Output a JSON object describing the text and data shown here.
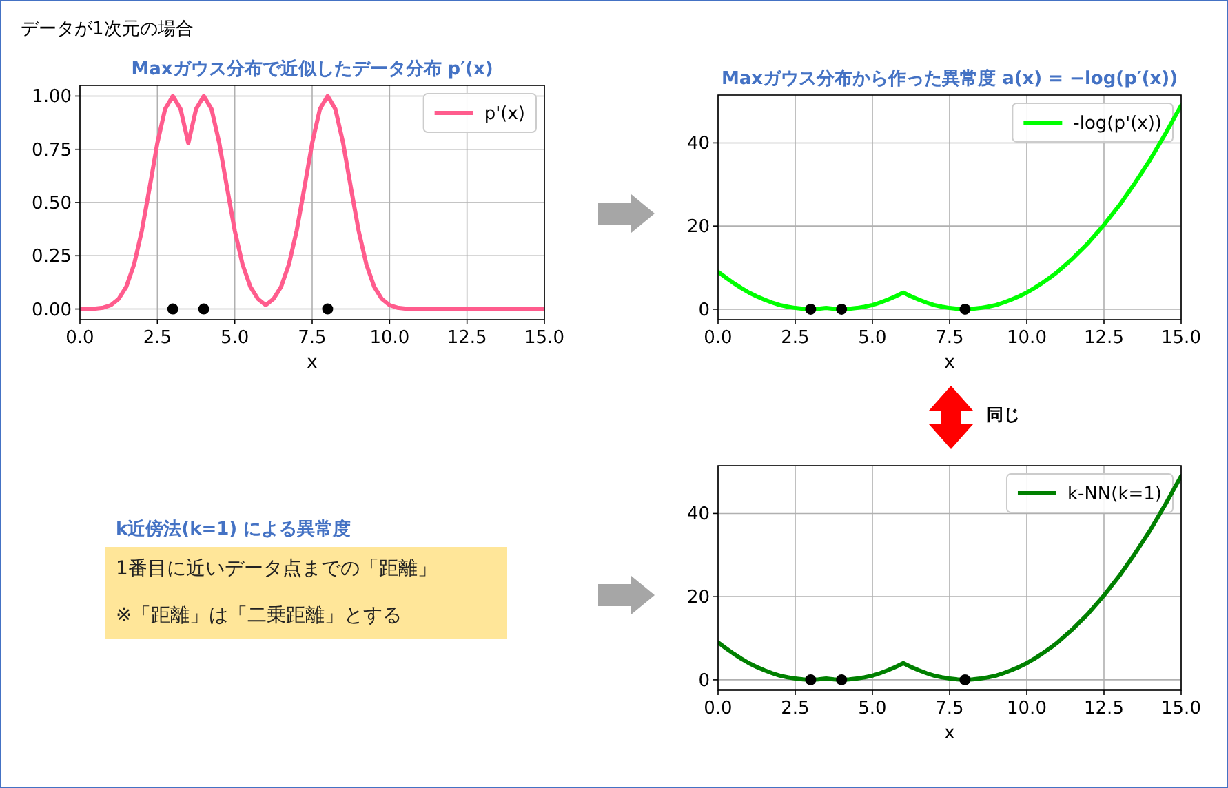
{
  "chart_data": [
    {
      "type": "other",
      "title": "データが1次元の場合"
    },
    {
      "type": "line",
      "title": "Maxガウス分布で近似したデータ分布 p′(x)",
      "xlabel": "x",
      "xlim": [
        0,
        15
      ],
      "xticks": [
        {
          "value": 0,
          "label": "0.0"
        },
        {
          "value": 2.5,
          "label": "2.5"
        },
        {
          "value": 5,
          "label": "5.0"
        },
        {
          "value": 7.5,
          "label": "7.5"
        },
        {
          "value": 10,
          "label": "10.0"
        },
        {
          "value": 12.5,
          "label": "12.5"
        },
        {
          "value": 15,
          "label": "15.0"
        }
      ],
      "ylim": [
        -0.05,
        1.05
      ],
      "yticks": [
        {
          "value": 0,
          "label": "0.00"
        },
        {
          "value": 0.25,
          "label": "0.25"
        },
        {
          "value": 0.5,
          "label": "0.50"
        },
        {
          "value": 0.75,
          "label": "0.75"
        },
        {
          "value": 1,
          "label": "1.00"
        }
      ],
      "grid": true,
      "legend": "top right",
      "line_style": "solid",
      "series": [
        {
          "type": "line",
          "name": "p'(x)",
          "color": "#ff5c8d",
          "x": [
            0,
            0.25,
            0.5,
            0.75,
            1,
            1.25,
            1.5,
            1.75,
            2,
            2.25,
            2.5,
            2.75,
            3,
            3.25,
            3.5,
            3.75,
            4,
            4.25,
            4.5,
            4.75,
            5,
            5.25,
            5.5,
            5.75,
            6,
            6.25,
            6.5,
            6.75,
            7,
            7.25,
            7.5,
            7.75,
            8,
            8.25,
            8.5,
            8.75,
            9,
            9.25,
            9.5,
            9.75,
            10,
            10.25,
            10.5,
            10.75,
            11,
            15
          ],
          "values": [
            0.0,
            0.001,
            0.002,
            0.006,
            0.018,
            0.047,
            0.105,
            0.21,
            0.368,
            0.57,
            0.779,
            0.939,
            1,
            0.939,
            0.779,
            0.939,
            1,
            0.939,
            0.779,
            0.57,
            0.368,
            0.21,
            0.105,
            0.047,
            0.018,
            0.047,
            0.105,
            0.21,
            0.368,
            0.57,
            0.779,
            0.939,
            1,
            0.939,
            0.779,
            0.57,
            0.368,
            0.21,
            0.105,
            0.047,
            0.018,
            0.006,
            0.002,
            0.001,
            0.0,
            0.0
          ]
        },
        {
          "type": "scatter",
          "color": "#000000",
          "marker": "circle",
          "x": [
            3,
            4,
            8
          ],
          "values": [
            0,
            0,
            0
          ]
        }
      ]
    },
    {
      "type": "line",
      "title": "Maxガウス分布から作った異常度 a(x) = −log(p′(x))",
      "xlabel": "x",
      "xlim": [
        0,
        15
      ],
      "xticks": [
        {
          "value": 0,
          "label": "0.0"
        },
        {
          "value": 2.5,
          "label": "2.5"
        },
        {
          "value": 5,
          "label": "5.0"
        },
        {
          "value": 7.5,
          "label": "7.5"
        },
        {
          "value": 10,
          "label": "10.0"
        },
        {
          "value": 12.5,
          "label": "12.5"
        },
        {
          "value": 15,
          "label": "15.0"
        }
      ],
      "ylim": [
        -2.5,
        51.5
      ],
      "yticks": [
        0,
        20,
        40
      ],
      "grid": true,
      "legend": "top right",
      "line_style": "solid",
      "series": [
        {
          "type": "line",
          "name": "-log(p'(x))",
          "color": "#00ff00",
          "x": [
            0,
            0.25,
            0.5,
            0.75,
            1,
            1.25,
            1.5,
            1.75,
            2,
            2.25,
            2.5,
            2.75,
            3,
            3.25,
            3.5,
            3.75,
            4,
            4.25,
            4.5,
            4.75,
            5,
            5.25,
            5.5,
            5.75,
            6,
            6.25,
            6.5,
            6.75,
            7,
            7.25,
            7.5,
            7.75,
            8,
            8.25,
            8.5,
            8.75,
            9,
            9.25,
            9.5,
            9.75,
            10,
            10.25,
            10.5,
            10.75,
            11,
            11.5,
            12,
            12.5,
            13,
            13.5,
            14,
            14.5,
            15
          ],
          "values": [
            9,
            7.6,
            6.3,
            5.1,
            4,
            3.1,
            2.3,
            1.6,
            1,
            0.6,
            0.3,
            0.1,
            0,
            0.1,
            0.3,
            0.1,
            0,
            0.1,
            0.3,
            0.6,
            1,
            1.6,
            2.3,
            3.1,
            4,
            3.1,
            2.3,
            1.6,
            1,
            0.6,
            0.3,
            0.1,
            0,
            0.1,
            0.3,
            0.6,
            1,
            1.6,
            2.3,
            3.1,
            4,
            5.1,
            6.3,
            7.6,
            9,
            12.3,
            16,
            20.3,
            25,
            30.3,
            36,
            42.3,
            49
          ]
        },
        {
          "type": "scatter",
          "color": "#000000",
          "marker": "circle",
          "x": [
            3,
            4,
            8
          ],
          "values": [
            0,
            0,
            0
          ]
        }
      ]
    },
    {
      "type": "other",
      "title": "k近傍法(k=1) による異常度",
      "annotations": [
        "1番目に近いデータ点までの「距離」",
        "※「距離」は「二乗距離」とする"
      ]
    },
    {
      "type": "line",
      "xlabel": "x",
      "xlim": [
        0,
        15
      ],
      "xticks": [
        {
          "value": 0,
          "label": "0.0"
        },
        {
          "value": 2.5,
          "label": "2.5"
        },
        {
          "value": 5,
          "label": "5.0"
        },
        {
          "value": 7.5,
          "label": "7.5"
        },
        {
          "value": 10,
          "label": "10.0"
        },
        {
          "value": 12.5,
          "label": "12.5"
        },
        {
          "value": 15,
          "label": "15.0"
        }
      ],
      "ylim": [
        -2.5,
        51.5
      ],
      "yticks": [
        0,
        20,
        40
      ],
      "grid": true,
      "legend": "top right",
      "line_style": "solid",
      "annotations": [
        "同じ"
      ],
      "series": [
        {
          "type": "line",
          "name": "k-NN(k=1)",
          "color": "#008000",
          "x": [
            0,
            0.25,
            0.5,
            0.75,
            1,
            1.25,
            1.5,
            1.75,
            2,
            2.25,
            2.5,
            2.75,
            3,
            3.25,
            3.5,
            3.75,
            4,
            4.25,
            4.5,
            4.75,
            5,
            5.25,
            5.5,
            5.75,
            6,
            6.25,
            6.5,
            6.75,
            7,
            7.25,
            7.5,
            7.75,
            8,
            8.25,
            8.5,
            8.75,
            9,
            9.25,
            9.5,
            9.75,
            10,
            10.25,
            10.5,
            10.75,
            11,
            11.5,
            12,
            12.5,
            13,
            13.5,
            14,
            14.5,
            15
          ],
          "values": [
            9,
            7.6,
            6.3,
            5.1,
            4,
            3.1,
            2.3,
            1.6,
            1,
            0.6,
            0.3,
            0.1,
            0,
            0.1,
            0.3,
            0.1,
            0,
            0.1,
            0.3,
            0.6,
            1,
            1.6,
            2.3,
            3.1,
            4,
            3.1,
            2.3,
            1.6,
            1,
            0.6,
            0.3,
            0.1,
            0,
            0.1,
            0.3,
            0.6,
            1,
            1.6,
            2.3,
            3.1,
            4,
            5.1,
            6.3,
            7.6,
            9,
            12.3,
            16,
            20.3,
            25,
            30.3,
            36,
            42.3,
            49
          ]
        },
        {
          "type": "scatter",
          "color": "#000000",
          "marker": "circle",
          "x": [
            3,
            4,
            8
          ],
          "values": [
            0,
            0,
            0
          ]
        }
      ]
    }
  ]
}
